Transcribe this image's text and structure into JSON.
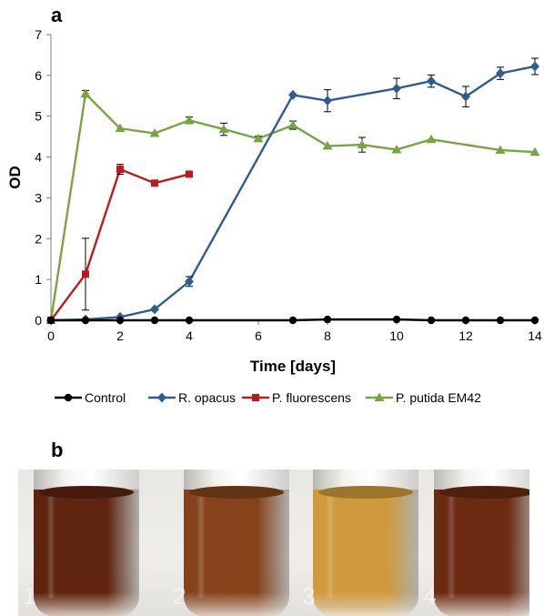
{
  "panel_a_label": "a",
  "panel_b_label": "b",
  "chart_data": {
    "type": "line",
    "xlabel": "Time [days]",
    "ylabel": "OD",
    "xlim": [
      0,
      14
    ],
    "ylim": [
      0,
      7
    ],
    "xticks": [
      0,
      2,
      4,
      6,
      8,
      10,
      12,
      14
    ],
    "yticks": [
      0,
      1,
      2,
      3,
      4,
      5,
      6,
      7
    ],
    "grid": false,
    "legend_position": "bottom",
    "series": [
      {
        "name": "Control",
        "color": "#000000",
        "marker": "circle",
        "x": [
          0,
          1,
          2,
          3,
          4,
          7,
          8,
          10,
          11,
          12,
          13,
          14
        ],
        "y": [
          0,
          0,
          0,
          0,
          0,
          0,
          0.02,
          0.02,
          0,
          0,
          0,
          0
        ],
        "err": [
          0,
          0,
          0,
          0,
          0,
          0,
          0,
          0,
          0,
          0,
          0,
          0
        ]
      },
      {
        "name": "R. opacus",
        "color": "#2e5c91",
        "marker": "diamond",
        "x": [
          0,
          1,
          2,
          3,
          4,
          7,
          8,
          10,
          11,
          12,
          13,
          14
        ],
        "y": [
          0,
          0.02,
          0.08,
          0.27,
          0.95,
          5.52,
          5.38,
          5.68,
          5.86,
          5.48,
          6.05,
          6.22
        ],
        "err": [
          0,
          0,
          0,
          0,
          0.12,
          0,
          0.27,
          0.25,
          0.15,
          0.25,
          0.15,
          0.2
        ]
      },
      {
        "name": "P. fluorescens",
        "color": "#c0191c",
        "marker": "square",
        "x": [
          0,
          1,
          2,
          3,
          4
        ],
        "y": [
          0,
          1.13,
          3.7,
          3.36,
          3.58
        ],
        "err": [
          0,
          0.88,
          0.12,
          0,
          0
        ]
      },
      {
        "name": "P. putida EM42",
        "color": "#78a542",
        "marker": "triangle",
        "x": [
          0,
          1,
          2,
          3,
          4,
          5,
          6,
          7,
          8,
          9,
          10,
          11,
          13,
          14
        ],
        "y": [
          0,
          5.55,
          4.7,
          4.58,
          4.9,
          4.68,
          4.45,
          4.78,
          4.27,
          4.3,
          4.18,
          4.43,
          4.17,
          4.12
        ],
        "err": [
          0,
          0.08,
          0,
          0,
          0.08,
          0.15,
          0.06,
          0.1,
          0,
          0.18,
          0,
          0,
          0,
          0
        ]
      }
    ]
  },
  "photo": {
    "vials": [
      {
        "label": "1",
        "color": "#5e2410"
      },
      {
        "label": "2",
        "color": "#86431b"
      },
      {
        "label": "3",
        "color": "#cf9a3c"
      },
      {
        "label": "4",
        "color": "#6b2a12"
      }
    ]
  }
}
